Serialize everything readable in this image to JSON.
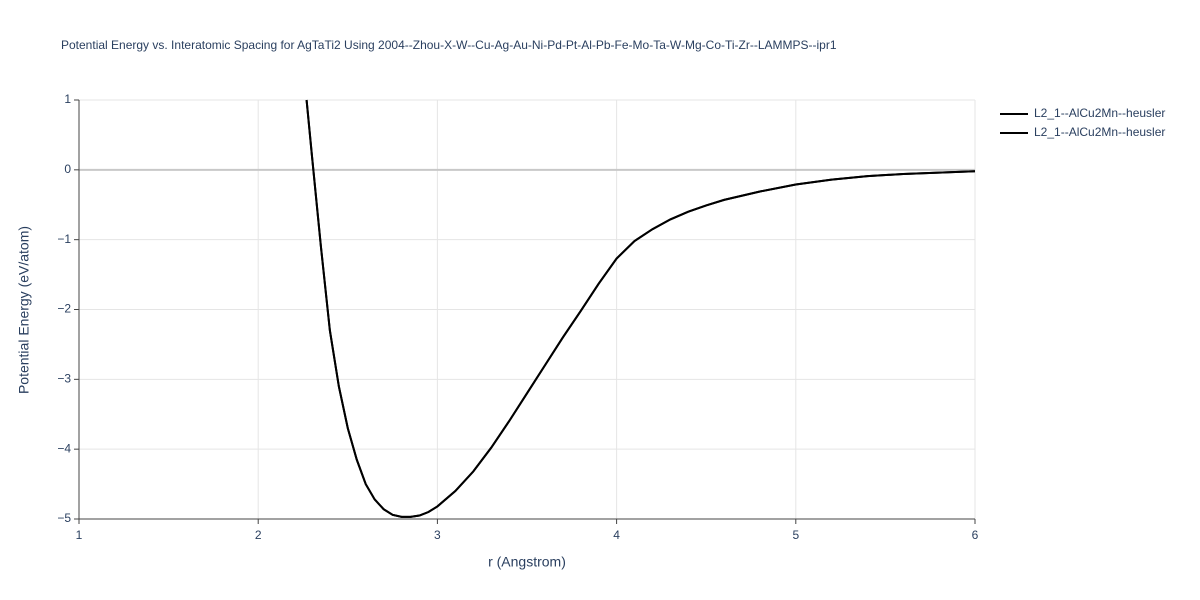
{
  "chart_data": {
    "type": "line",
    "title": "Potential Energy vs. Interatomic Spacing for AgTaTi2 Using 2004--Zhou-X-W--Cu-Ag-Au-Ni-Pd-Pt-Al-Pb-Fe-Mo-Ta-W-Mg-Co-Ti-Zr--LAMMPS--ipr1",
    "xlabel": "r (Angstrom)",
    "ylabel": "Potential Energy (eV/atom)",
    "x": [
      2.27,
      2.3,
      2.35,
      2.4,
      2.45,
      2.5,
      2.55,
      2.6,
      2.65,
      2.7,
      2.75,
      2.8,
      2.85,
      2.9,
      2.95,
      3.0,
      3.1,
      3.2,
      3.3,
      3.4,
      3.5,
      3.6,
      3.7,
      3.8,
      3.9,
      4.0,
      4.1,
      4.2,
      4.3,
      4.4,
      4.5,
      4.6,
      4.8,
      5.0,
      5.2,
      5.4,
      5.6,
      5.8,
      6.0
    ],
    "series": [
      {
        "name": "L2_1--AlCu2Mn--heusler",
        "color": "#000000",
        "values": [
          1,
          0.2,
          -1.1,
          -2.3,
          -3.1,
          -3.7,
          -4.15,
          -4.5,
          -4.72,
          -4.86,
          -4.94,
          -4.97,
          -4.97,
          -4.95,
          -4.9,
          -4.82,
          -4.6,
          -4.32,
          -3.98,
          -3.6,
          -3.2,
          -2.8,
          -2.4,
          -2.02,
          -1.63,
          -1.27,
          -1.02,
          -0.85,
          -0.71,
          -0.6,
          -0.51,
          -0.43,
          -0.31,
          -0.21,
          -0.14,
          -0.09,
          -0.06,
          -0.04,
          -0.02
        ]
      },
      {
        "name": "L2_1--AlCu2Mn--heusler",
        "color": "#000000",
        "values": [
          1,
          0.2,
          -1.1,
          -2.3,
          -3.1,
          -3.7,
          -4.15,
          -4.5,
          -4.72,
          -4.86,
          -4.94,
          -4.97,
          -4.97,
          -4.95,
          -4.9,
          -4.82,
          -4.6,
          -4.32,
          -3.98,
          -3.6,
          -3.2,
          -2.8,
          -2.4,
          -2.02,
          -1.63,
          -1.27,
          -1.02,
          -0.85,
          -0.71,
          -0.6,
          -0.51,
          -0.43,
          -0.31,
          -0.21,
          -0.14,
          -0.09,
          -0.06,
          -0.04,
          -0.02
        ]
      }
    ],
    "xlim": [
      1,
      6
    ],
    "xticks": [
      1,
      2,
      3,
      4,
      5,
      6
    ],
    "ylim": [
      -5,
      1
    ],
    "yticks": [
      {
        "value": -5,
        "label": "−5"
      },
      {
        "value": -4,
        "label": "−4"
      },
      {
        "value": -3,
        "label": "−3"
      },
      {
        "value": -2,
        "label": "−2"
      },
      {
        "value": -1,
        "label": "−1"
      },
      0,
      1
    ],
    "grid": true,
    "legend": "right"
  }
}
